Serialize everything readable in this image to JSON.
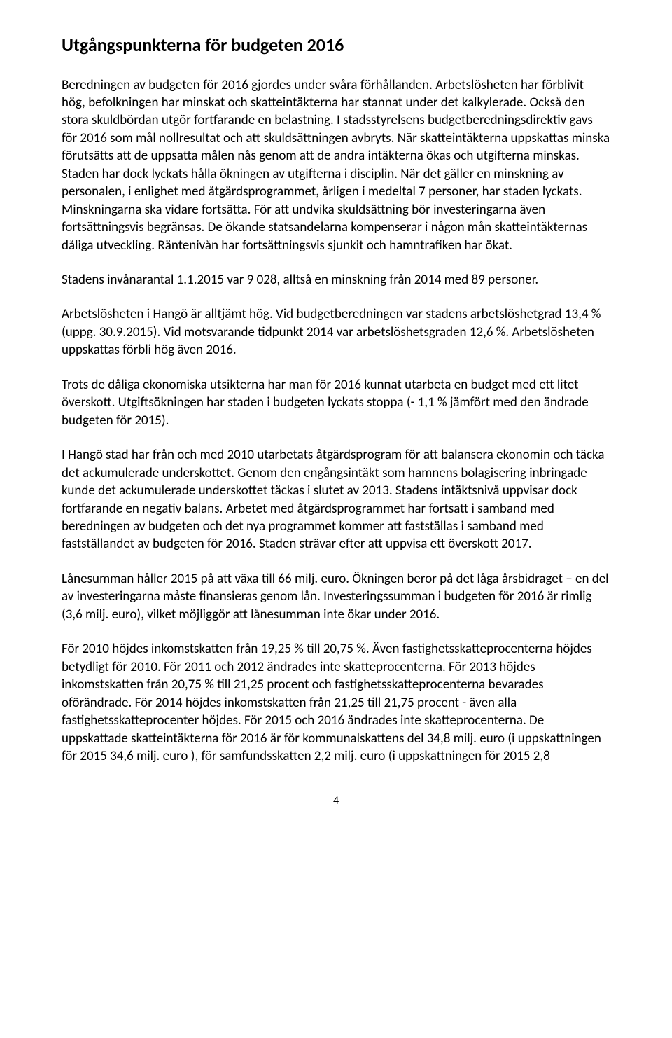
{
  "document": {
    "heading": "Utgångspunkterna för budgeten 2016",
    "paragraphs": [
      "Beredningen av budgeten för 2016 gjordes under svåra förhållanden. Arbetslösheten har förblivit hög, befolkningen har minskat och skatteintäkterna har stannat under det kalkylerade. Också den stora skuldbördan utgör fortfarande en belastning. I stadsstyrelsens budgetberedningsdirektiv gavs för 2016 som mål nollresultat och att skuldsättningen avbryts. När skatteintäkterna uppskattas minska förutsätts att de uppsatta målen nås genom att de andra intäkterna ökas och utgifterna minskas. Staden har dock lyckats hålla ökningen av utgifterna i disciplin. När det gäller en minskning av personalen, i enlighet med åtgärdsprogrammet, årligen i medeltal 7 personer, har staden lyckats. Minskningarna ska vidare fortsätta. För att undvika skuldsättning bör investeringarna även fortsättningsvis begränsas. De ökande statsandelarna kompenserar i någon mån skatteintäkternas dåliga utveckling. Räntenivån har fortsättningsvis sjunkit och hamntrafiken har ökat.",
      "Stadens invånarantal 1.1.2015 var 9 028, alltså en minskning från 2014 med 89 personer.",
      "Arbetslösheten i Hangö är alltjämt hög. Vid budgetberedningen var stadens arbetslöshetgrad 13,4 % (uppg. 30.9.2015). Vid motsvarande tidpunkt 2014 var arbetslöshetsgraden 12,6 %. Arbetslösheten uppskattas förbli hög även 2016.",
      "Trots de dåliga ekonomiska utsikterna har man för 2016 kunnat utarbeta en budget med ett litet överskott. Utgiftsökningen har staden i budgeten lyckats stoppa (- 1,1 % jämfört med den ändrade budgeten för 2015).",
      "I Hangö stad har från och med 2010 utarbetats åtgärdsprogram för att balansera ekonomin och täcka det ackumulerade underskottet. Genom den engångsintäkt som hamnens bolagisering inbringade kunde det ackumulerade underskottet täckas i slutet av 2013. Stadens intäktsnivå uppvisar dock fortfarande en negativ balans. Arbetet med åtgärdsprogrammet har fortsatt i samband med beredningen av budgeten och det nya programmet kommer att fastställas i samband med fastställandet av budgeten för 2016. Staden strävar efter att uppvisa ett överskott 2017.",
      "Lånesumman håller 2015 på att växa till 66 milj. euro. Ökningen beror på det låga årsbidraget – en del av investeringarna måste finansieras genom lån. Investeringssumman i budgeten för 2016 är rimlig (3,6 milj. euro), vilket möjliggör att lånesumman inte ökar under 2016.",
      "För 2010 höjdes inkomstskatten från 19,25 % till 20,75 %. Även fastighetsskatteprocenterna höjdes betydligt för 2010. För 2011 och 2012 ändrades inte skatteprocenterna. För 2013 höjdes inkomstskatten från 20,75 % till 21,25 procent och fastighetsskatteprocenterna bevarades oförändrade. För 2014 höjdes inkomstskatten från 21,25 till 21,75 procent - även alla fastighetsskatteprocenter höjdes. För 2015 och 2016 ändrades inte skatteprocenterna. De uppskattade skatteintäkterna för 2016 är för kommunalskattens del 34,8 milj. euro (i uppskattningen för 2015 34,6 milj. euro ), för samfundsskatten 2,2 milj. euro (i uppskattningen för 2015  2,8"
    ],
    "page_number": "4",
    "text_color": "#000000",
    "background_color": "#ffffff",
    "heading_fontsize": 26,
    "body_fontsize": 19,
    "line_height": 1.34
  }
}
